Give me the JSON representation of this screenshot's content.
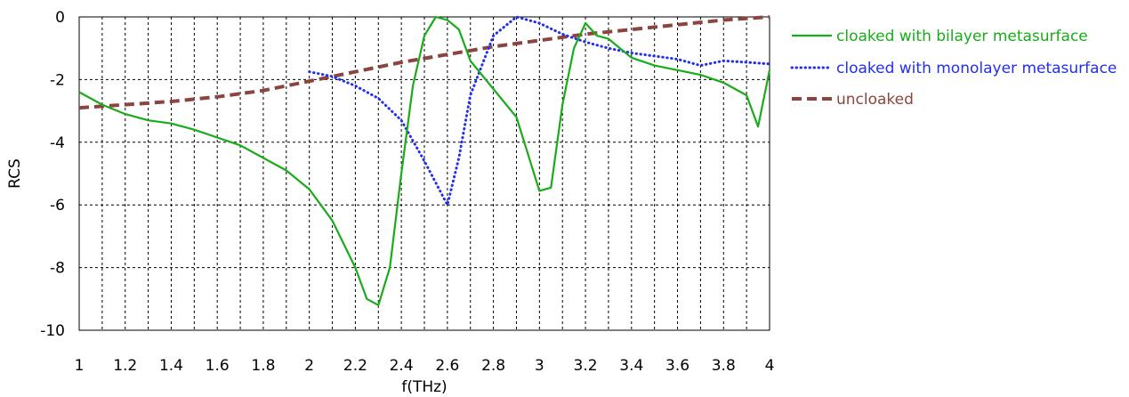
{
  "chart_data": {
    "type": "line",
    "xlabel": "f(THz)",
    "ylabel": "RCS",
    "xlim": [
      1,
      4
    ],
    "ylim": [
      -10,
      0
    ],
    "x_ticks": [
      "1",
      "1.2",
      "1.4",
      "1.6",
      "1.8",
      "2",
      "2.2",
      "2.4",
      "2.6",
      "2.8",
      "3",
      "3.2",
      "3.4",
      "3.6",
      "3.8",
      "4"
    ],
    "y_ticks": [
      "0",
      "-2",
      "-4",
      "-6",
      "-8",
      "-10"
    ],
    "grid": true,
    "legend_position": "right",
    "series": [
      {
        "name": "cloaked with bilayer metasurface",
        "color": "#1aab1a",
        "style": "solid",
        "x": [
          1,
          1.1,
          1.2,
          1.3,
          1.4,
          1.5,
          1.6,
          1.7,
          1.8,
          1.9,
          2,
          2.1,
          2.2,
          2.25,
          2.3,
          2.35,
          2.4,
          2.45,
          2.5,
          2.55,
          2.6,
          2.65,
          2.7,
          2.8,
          2.9,
          3,
          3.05,
          3.1,
          3.15,
          3.2,
          3.25,
          3.3,
          3.4,
          3.5,
          3.6,
          3.7,
          3.8,
          3.9,
          3.95,
          4
        ],
        "y": [
          -2.4,
          -2.8,
          -3.1,
          -3.3,
          -3.4,
          -3.6,
          -3.85,
          -4.1,
          -4.5,
          -4.9,
          -5.5,
          -6.5,
          -8.0,
          -9.0,
          -9.2,
          -8.0,
          -5.0,
          -2.2,
          -0.6,
          0.0,
          -0.1,
          -0.4,
          -1.4,
          -2.3,
          -3.2,
          -5.55,
          -5.45,
          -2.8,
          -1.0,
          -0.2,
          -0.6,
          -0.7,
          -1.3,
          -1.55,
          -1.7,
          -1.85,
          -2.1,
          -2.5,
          -3.5,
          -1.7
        ]
      },
      {
        "name": "cloaked with monolayer metasurface",
        "color": "#2030ee",
        "style": "dotted",
        "x": [
          2,
          2.1,
          2.2,
          2.3,
          2.4,
          2.5,
          2.6,
          2.65,
          2.7,
          2.8,
          2.9,
          3,
          3.1,
          3.2,
          3.3,
          3.4,
          3.5,
          3.6,
          3.7,
          3.8,
          3.9,
          4
        ],
        "y": [
          -1.75,
          -1.9,
          -2.2,
          -2.6,
          -3.3,
          -4.6,
          -6.0,
          -4.5,
          -2.5,
          -0.6,
          0.0,
          -0.2,
          -0.55,
          -0.8,
          -1.0,
          -1.15,
          -1.25,
          -1.35,
          -1.55,
          -1.4,
          -1.45,
          -1.5
        ]
      },
      {
        "name": "uncloaked",
        "color": "#8b4540",
        "style": "dashed",
        "x": [
          1,
          1.2,
          1.4,
          1.6,
          1.8,
          2,
          2.2,
          2.4,
          2.6,
          2.8,
          3,
          3.2,
          3.4,
          3.6,
          3.8,
          4
        ],
        "y": [
          -2.9,
          -2.8,
          -2.7,
          -2.55,
          -2.35,
          -2.05,
          -1.75,
          -1.45,
          -1.2,
          -0.95,
          -0.75,
          -0.55,
          -0.4,
          -0.25,
          -0.1,
          0.0
        ]
      }
    ]
  }
}
